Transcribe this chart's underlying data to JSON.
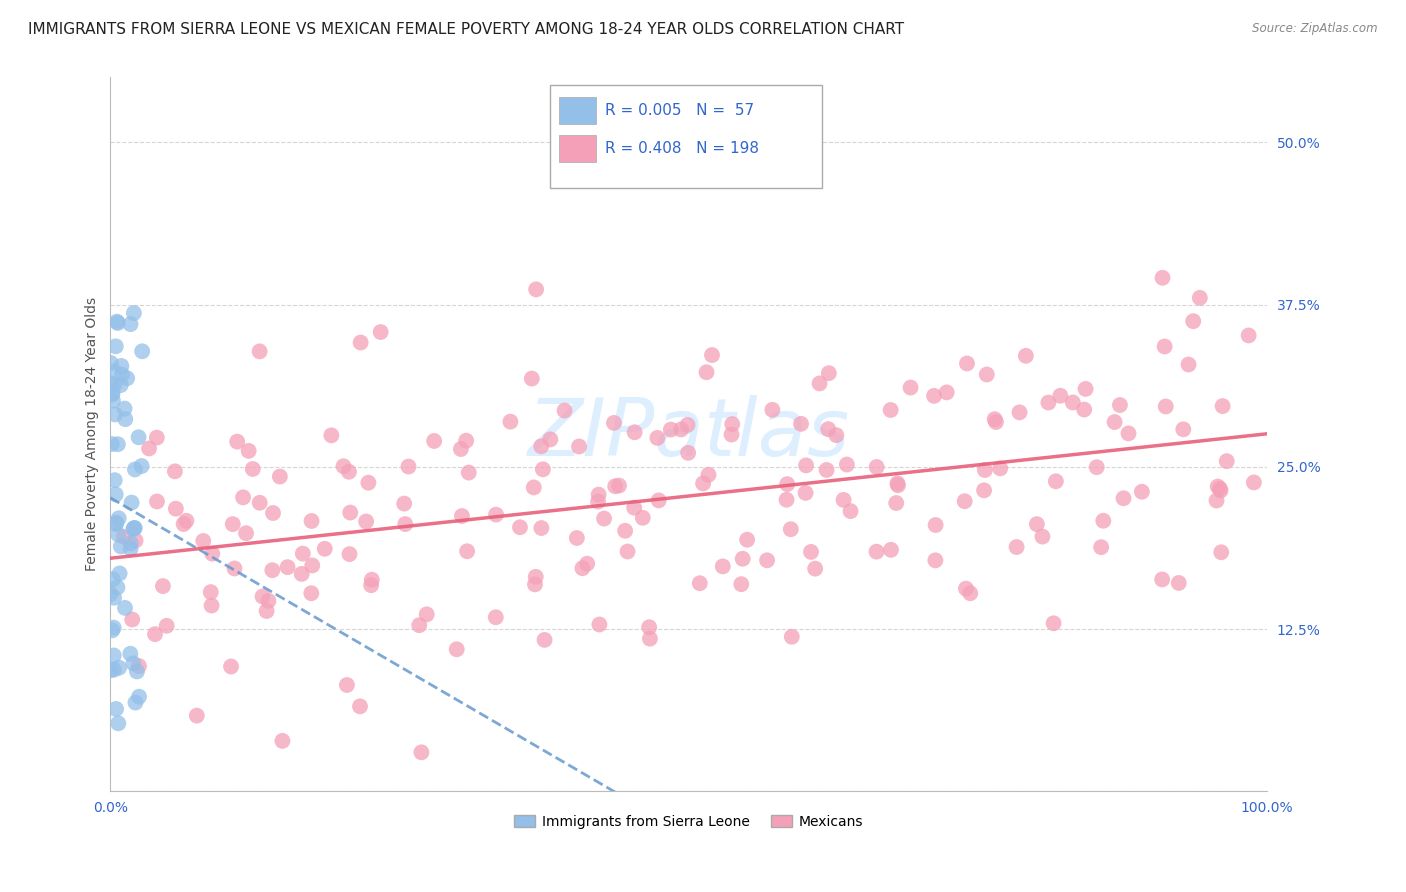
{
  "title": "IMMIGRANTS FROM SIERRA LEONE VS MEXICAN FEMALE POVERTY AMONG 18-24 YEAR OLDS CORRELATION CHART",
  "source": "Source: ZipAtlas.com",
  "ylabel": "Female Poverty Among 18-24 Year Olds",
  "xlim": [
    0,
    1.0
  ],
  "ylim": [
    0,
    0.55
  ],
  "yticks": [
    0.0,
    0.125,
    0.25,
    0.375,
    0.5
  ],
  "yticklabels": [
    "",
    "12.5%",
    "25.0%",
    "37.5%",
    "50.0%"
  ],
  "xticks": [
    0.0,
    1.0
  ],
  "xticklabels": [
    "0.0%",
    "100.0%"
  ],
  "blue_color": "#93bfe8",
  "pink_color": "#f4a0b8",
  "blue_line_color": "#6699cc",
  "pink_line_color": "#e8607a",
  "legend_r_color": "#3366cc",
  "tick_label_color": "#3366cc",
  "background_color": "#ffffff",
  "grid_color": "#cccccc",
  "watermark": "ZIPatlas",
  "watermark_color": "#ddeeff",
  "title_fontsize": 11,
  "axis_label_fontsize": 10,
  "tick_fontsize": 10,
  "legend_fontsize": 11
}
